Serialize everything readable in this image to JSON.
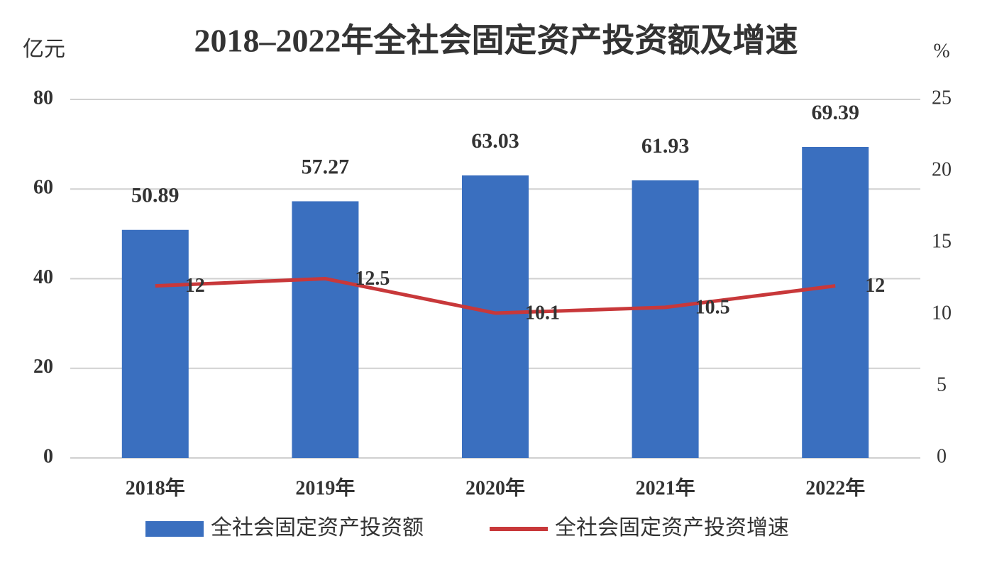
{
  "chart_data": {
    "type": "bar",
    "title": "2018–2022年全社会固定资产投资额及增速",
    "y_label": "亿元",
    "y2_label": "%",
    "categories": [
      "2018年",
      "2019年",
      "2020年",
      "2021年",
      "2022年"
    ],
    "series": [
      {
        "name": "全社会固定资产投资额",
        "type": "bar",
        "color": "#3a6fbf",
        "values": [
          50.89,
          57.27,
          63.03,
          61.93,
          69.39
        ]
      },
      {
        "name": "全社会固定资产投资增速",
        "type": "line",
        "axis": "y2",
        "color": "#c8383a",
        "values": [
          12,
          12.5,
          10.1,
          10.5,
          12
        ]
      }
    ],
    "ylim": [
      0,
      80
    ],
    "yticks": [
      0,
      20,
      40,
      60,
      80
    ],
    "y2lim": [
      0,
      25
    ],
    "y2ticks": [
      0,
      5,
      10,
      15,
      20,
      25
    ],
    "grid": true,
    "legend": "bottom"
  }
}
